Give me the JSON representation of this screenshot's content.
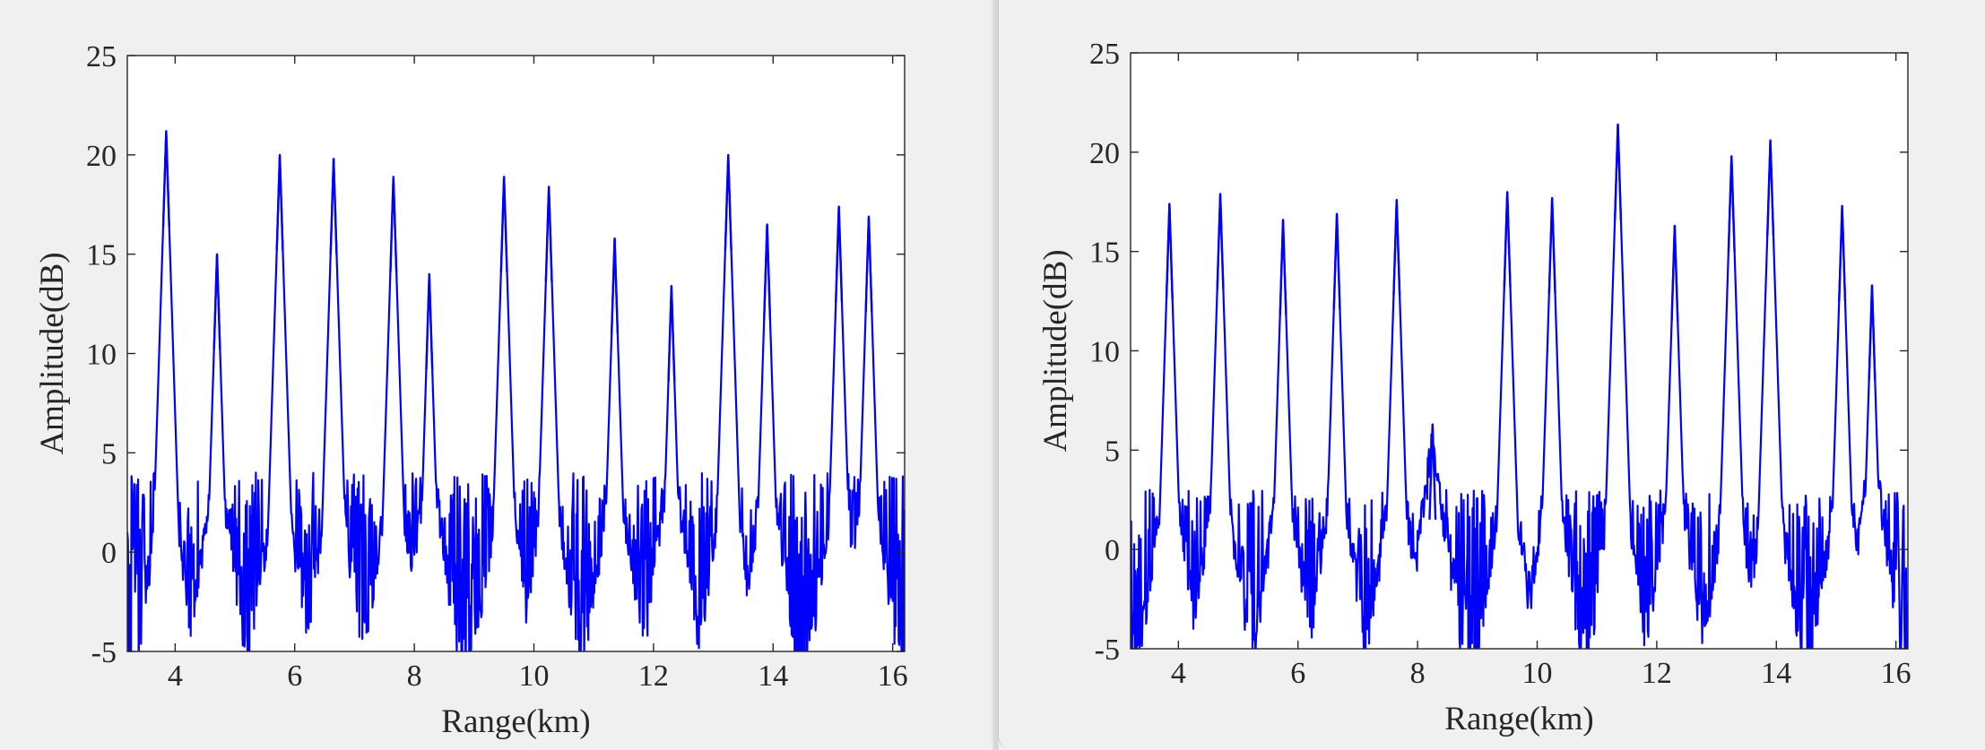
{
  "colors": {
    "line": "#0000ff",
    "axis": "#262626",
    "plot_background": "#ffffff",
    "figure_background": "#f0f0f0"
  },
  "chart_data": [
    {
      "type": "line",
      "title": "",
      "xlabel": "Range(km)",
      "ylabel": "Amplitude(dB)",
      "xlim": [
        3.2,
        16.2
      ],
      "ylim": [
        -5,
        25
      ],
      "xticks": [
        4,
        6,
        8,
        10,
        12,
        14,
        16
      ],
      "yticks": [
        -5,
        0,
        5,
        10,
        15,
        20,
        25
      ],
      "grid": false,
      "legend": false,
      "series": [
        {
          "color": "#0000ff",
          "noise_floor_db": [
            -5,
            4
          ],
          "peaks": [
            {
              "x": 3.85,
              "y": 21.2
            },
            {
              "x": 4.7,
              "y": 15.0
            },
            {
              "x": 5.75,
              "y": 20.0
            },
            {
              "x": 6.65,
              "y": 19.8
            },
            {
              "x": 7.65,
              "y": 18.9
            },
            {
              "x": 8.25,
              "y": 14.0
            },
            {
              "x": 9.5,
              "y": 18.9
            },
            {
              "x": 10.25,
              "y": 18.4
            },
            {
              "x": 11.35,
              "y": 15.8
            },
            {
              "x": 12.3,
              "y": 13.4
            },
            {
              "x": 13.25,
              "y": 20.0
            },
            {
              "x": 13.9,
              "y": 16.5
            },
            {
              "x": 15.1,
              "y": 17.4
            },
            {
              "x": 15.6,
              "y": 16.9
            }
          ]
        }
      ]
    },
    {
      "type": "line",
      "title": "",
      "xlabel": "Range(km)",
      "ylabel": "Amplitude(dB)",
      "xlim": [
        3.2,
        16.2
      ],
      "ylim": [
        -5,
        25
      ],
      "xticks": [
        4,
        6,
        8,
        10,
        12,
        14,
        16
      ],
      "yticks": [
        -5,
        0,
        5,
        10,
        15,
        20,
        25
      ],
      "grid": false,
      "legend": false,
      "series": [
        {
          "color": "#0000ff",
          "noise_floor_db": [
            -5,
            3
          ],
          "peaks": [
            {
              "x": 3.85,
              "y": 17.4
            },
            {
              "x": 4.7,
              "y": 17.9
            },
            {
              "x": 5.75,
              "y": 16.6
            },
            {
              "x": 6.65,
              "y": 16.9
            },
            {
              "x": 7.65,
              "y": 17.6
            },
            {
              "x": 8.25,
              "y": 6.3
            },
            {
              "x": 9.5,
              "y": 18.0
            },
            {
              "x": 10.25,
              "y": 17.7
            },
            {
              "x": 11.35,
              "y": 21.4
            },
            {
              "x": 12.3,
              "y": 16.3
            },
            {
              "x": 13.25,
              "y": 19.8
            },
            {
              "x": 13.9,
              "y": 20.6
            },
            {
              "x": 15.1,
              "y": 17.3
            },
            {
              "x": 15.6,
              "y": 13.3
            }
          ]
        }
      ]
    }
  ]
}
